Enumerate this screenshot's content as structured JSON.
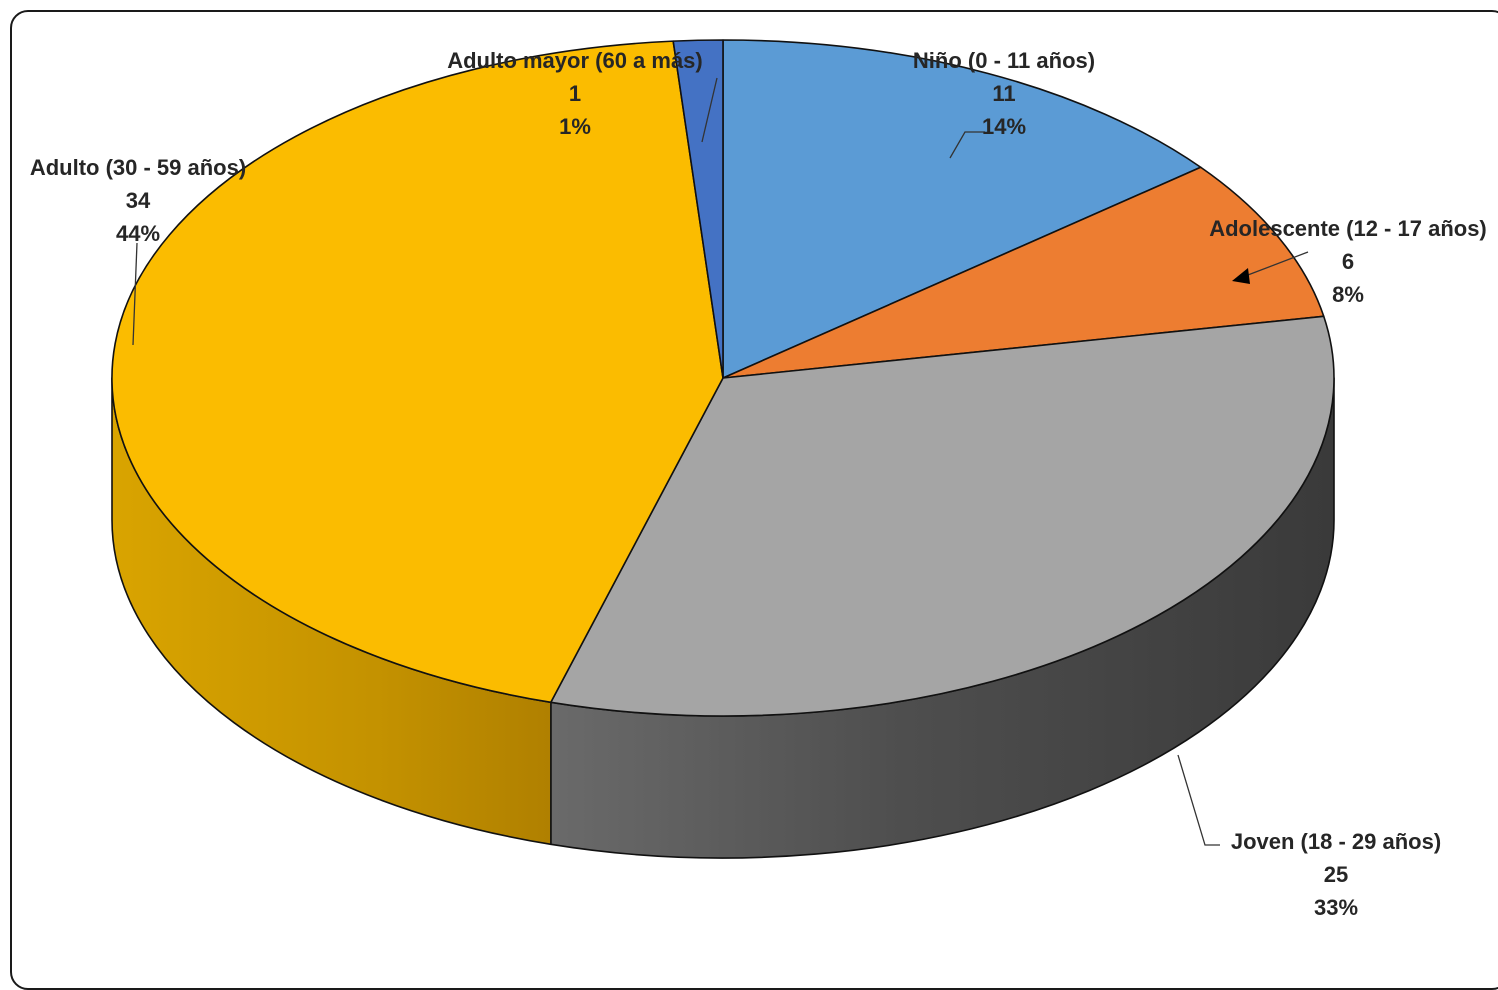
{
  "chart_data": {
    "type": "pie",
    "style": "3d",
    "title": "",
    "legend": "none",
    "slices": [
      {
        "label": "Niño (0 - 11 años)",
        "value": 11,
        "percent": "14%",
        "color": "#5b9bd5",
        "side_color": "#41719c"
      },
      {
        "label": "Adolescente (12 - 17 años)",
        "value": 6,
        "percent": "8%",
        "color": "#ed7d31",
        "side_color": "#ae5a21"
      },
      {
        "label": "Joven (18 - 29 años)",
        "value": 25,
        "percent": "33%",
        "color": "#a5a5a5",
        "side_color": "#4a4a4a"
      },
      {
        "label": "Adulto (30 - 59 años)",
        "value": 34,
        "percent": "44%",
        "color": "#fbbc00",
        "side_color": "#c49000"
      },
      {
        "label": "Adulto mayor (60 a más)",
        "value": 1,
        "percent": "1%",
        "color": "#4472c4",
        "side_color": "#2f528f"
      }
    ]
  }
}
